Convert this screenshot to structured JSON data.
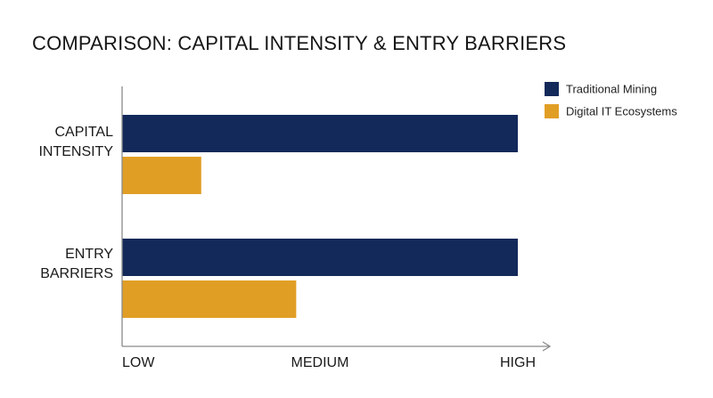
{
  "chart_data": {
    "type": "bar",
    "orientation": "horizontal",
    "title": "COMPARISON: CAPITAL INTENSITY & ENTRY BARRIERS",
    "categories": [
      [
        "CAPITAL",
        "INTENSITY"
      ],
      [
        "ENTRY",
        "BARRIERS"
      ]
    ],
    "series": [
      {
        "name": "Traditional Mining",
        "color": "#13295a",
        "values": [
          1.0,
          1.0
        ]
      },
      {
        "name": "Digital IT Ecosystems",
        "color": "#e19e25",
        "values": [
          0.2,
          0.44
        ]
      }
    ],
    "xticks": [
      {
        "value": 0,
        "label": "LOW"
      },
      {
        "value": 0.5,
        "label": "MEDIUM"
      },
      {
        "value": 1.0,
        "label": "HIGH"
      }
    ],
    "xlim": [
      0,
      1.0
    ],
    "legend": "top-right",
    "grid": false,
    "axis_color": "#8a8a8a"
  }
}
